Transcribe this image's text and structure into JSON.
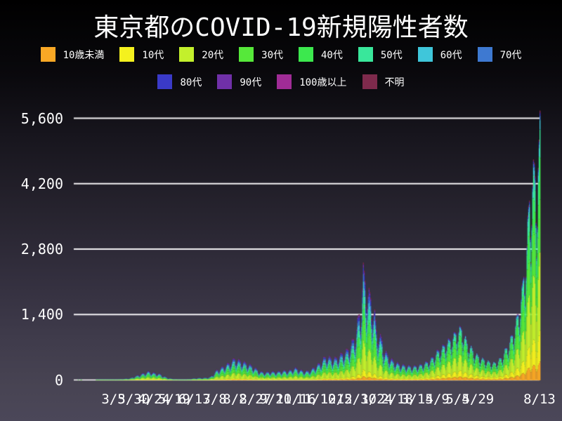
{
  "page": {
    "title": "東京都のCOVID-19新規陽性者数"
  },
  "legend": {
    "rows": [
      [
        {
          "label": "10歳未満",
          "color": "#f9a825"
        },
        {
          "label": "10代",
          "color": "#f4f11e"
        },
        {
          "label": "20代",
          "color": "#c3f02c"
        },
        {
          "label": "30代",
          "color": "#56e83a"
        },
        {
          "label": "40代",
          "color": "#3ce84e"
        },
        {
          "label": "50代",
          "color": "#39e79b"
        },
        {
          "label": "60代",
          "color": "#3fc6da"
        },
        {
          "label": "70代",
          "color": "#3e79d1"
        }
      ],
      [
        {
          "label": "80代",
          "color": "#3a3ac8"
        },
        {
          "label": "90代",
          "color": "#7030a8"
        },
        {
          "label": "100歳以上",
          "color": "#a02c96"
        },
        {
          "label": "不明",
          "color": "#7e2a4c"
        }
      ]
    ]
  },
  "axes": {
    "y": {
      "ticks": [
        {
          "label": "0",
          "value": 0
        },
        {
          "label": "1,400",
          "value": 1400
        },
        {
          "label": "2,800",
          "value": 2800
        },
        {
          "label": "4,200",
          "value": 4200
        },
        {
          "label": "5,600",
          "value": 5600
        }
      ]
    },
    "x": {
      "total_days": 575,
      "ticks": [
        {
          "label": "3/5",
          "day": 49
        },
        {
          "label": "3/30",
          "day": 74
        },
        {
          "label": "4/24",
          "day": 99
        },
        {
          "label": "5/19",
          "day": 124
        },
        {
          "label": "6/13",
          "day": 149
        },
        {
          "label": "7/8",
          "day": 174
        },
        {
          "label": "8/2",
          "day": 199
        },
        {
          "label": "8/27",
          "day": 224
        },
        {
          "label": "9/21",
          "day": 249
        },
        {
          "label": "10/16",
          "day": 274
        },
        {
          "label": "11/10",
          "day": 299
        },
        {
          "label": "12/5",
          "day": 324
        },
        {
          "label": "12/30",
          "day": 349
        },
        {
          "label": "1/24",
          "day": 374
        },
        {
          "label": "2/18",
          "day": 399
        },
        {
          "label": "3/15",
          "day": 424
        },
        {
          "label": "4/9",
          "day": 449
        },
        {
          "label": "5/4",
          "day": 474
        },
        {
          "label": "5/29",
          "day": 499
        },
        {
          "label": "8/13",
          "day": 575
        }
      ]
    }
  },
  "chart_data": {
    "type": "area",
    "stacked": true,
    "title": "東京都のCOVID-19新規陽性者数",
    "xlabel": "",
    "ylabel": "",
    "ylim": [
      0,
      5800
    ],
    "grid": true,
    "legend_position": "top",
    "categories_note": "daily values, day 0 at left edge of plot, day 575 = 8/13 at right edge",
    "series_stack_order_bottom_to_top": [
      "10歳未満",
      "10代",
      "20代",
      "30代",
      "40代",
      "50代",
      "60代",
      "70代",
      "80代",
      "90代",
      "100歳以上",
      "不明"
    ],
    "envelope_day_total": [
      [
        0,
        0
      ],
      [
        4,
        0
      ],
      [
        5,
        1.6
      ],
      [
        6,
        0
      ],
      [
        9,
        1.6
      ],
      [
        10,
        0
      ],
      [
        24,
        0
      ],
      [
        27,
        1.2
      ],
      [
        32,
        2
      ],
      [
        36,
        3.5
      ],
      [
        40,
        7
      ],
      [
        45,
        12
      ],
      [
        49,
        17
      ],
      [
        55,
        24
      ],
      [
        60,
        32
      ],
      [
        65,
        40
      ],
      [
        69,
        48
      ],
      [
        74,
        85
      ],
      [
        80,
        125
      ],
      [
        85,
        160
      ],
      [
        92,
        205
      ],
      [
        98,
        175
      ],
      [
        103,
        158
      ],
      [
        106,
        145
      ],
      [
        110,
        100
      ],
      [
        115,
        60
      ],
      [
        120,
        38
      ],
      [
        128,
        24
      ],
      [
        137,
        19
      ],
      [
        144,
        34
      ],
      [
        151,
        52
      ],
      [
        158,
        56
      ],
      [
        164,
        62
      ],
      [
        168,
        78
      ],
      [
        172,
        145
      ],
      [
        176,
        235
      ],
      [
        182,
        295
      ],
      [
        189,
        375
      ],
      [
        194,
        430
      ],
      [
        198,
        505
      ],
      [
        203,
        460
      ],
      [
        208,
        430
      ],
      [
        212,
        405
      ],
      [
        220,
        330
      ],
      [
        226,
        250
      ],
      [
        229,
        205
      ],
      [
        236,
        185
      ],
      [
        243,
        205
      ],
      [
        248,
        195
      ],
      [
        255,
        210
      ],
      [
        259,
        225
      ],
      [
        264,
        215
      ],
      [
        269,
        250
      ],
      [
        273,
        285
      ],
      [
        278,
        245
      ],
      [
        283,
        215
      ],
      [
        288,
        215
      ],
      [
        293,
        255
      ],
      [
        298,
        330
      ],
      [
        304,
        410
      ],
      [
        308,
        505
      ],
      [
        311,
        560
      ],
      [
        315,
        530
      ],
      [
        319,
        505
      ],
      [
        323,
        515
      ],
      [
        327,
        560
      ],
      [
        331,
        625
      ],
      [
        335,
        660
      ],
      [
        340,
        760
      ],
      [
        345,
        960
      ],
      [
        348,
        1080
      ],
      [
        350,
        1360
      ],
      [
        353,
        1620
      ],
      [
        355,
        1850
      ],
      [
        357,
        2520
      ],
      [
        359,
        2320
      ],
      [
        361,
        2120
      ],
      [
        364,
        1980
      ],
      [
        366,
        1920
      ],
      [
        369,
        1640
      ],
      [
        371,
        1520
      ],
      [
        373,
        1180
      ],
      [
        375,
        1080
      ],
      [
        378,
        1000
      ],
      [
        380,
        940
      ],
      [
        382,
        700
      ],
      [
        385,
        640
      ],
      [
        388,
        570
      ],
      [
        392,
        480
      ],
      [
        396,
        430
      ],
      [
        400,
        390
      ],
      [
        403,
        370
      ],
      [
        407,
        350
      ],
      [
        410,
        345
      ],
      [
        414,
        330
      ],
      [
        417,
        325
      ],
      [
        421,
        330
      ],
      [
        424,
        340
      ],
      [
        428,
        360
      ],
      [
        431,
        390
      ],
      [
        435,
        420
      ],
      [
        438,
        450
      ],
      [
        442,
        520
      ],
      [
        445,
        590
      ],
      [
        449,
        680
      ],
      [
        452,
        720
      ],
      [
        456,
        790
      ],
      [
        459,
        870
      ],
      [
        463,
        920
      ],
      [
        466,
        980
      ],
      [
        469,
        1040
      ],
      [
        471,
        1100
      ],
      [
        474,
        1150
      ],
      [
        478,
        1200
      ],
      [
        481,
        1060
      ],
      [
        485,
        870
      ],
      [
        489,
        780
      ],
      [
        492,
        700
      ],
      [
        496,
        600
      ],
      [
        499,
        560
      ],
      [
        503,
        500
      ],
      [
        506,
        480
      ],
      [
        510,
        440
      ],
      [
        513,
        420
      ],
      [
        517,
        400
      ],
      [
        520,
        405
      ],
      [
        523,
        440
      ],
      [
        527,
        520
      ],
      [
        530,
        610
      ],
      [
        532,
        690
      ],
      [
        535,
        790
      ],
      [
        539,
        960
      ],
      [
        542,
        1100
      ],
      [
        546,
        1380
      ],
      [
        549,
        1620
      ],
      [
        553,
        2050
      ],
      [
        556,
        2600
      ],
      [
        559,
        3200
      ],
      [
        562,
        4180
      ],
      [
        564,
        4350
      ],
      [
        566,
        4650
      ],
      [
        568,
        4800
      ],
      [
        570,
        4700
      ],
      [
        572,
        4450
      ],
      [
        573,
        5050
      ],
      [
        574,
        5150
      ],
      [
        575,
        5950
      ]
    ],
    "weekday_factors_mon_to_sun": [
      0.58,
      0.74,
      0.9,
      1.0,
      0.97,
      0.92,
      0.72
    ],
    "day0_weekday_index": 3,
    "age_share_early": [
      0.035,
      0.06,
      0.245,
      0.17,
      0.14,
      0.115,
      0.075,
      0.065,
      0.05,
      0.028,
      0.002,
      0.015
    ],
    "age_share_late": [
      0.07,
      0.115,
      0.29,
      0.195,
      0.155,
      0.105,
      0.035,
      0.016,
      0.008,
      0.004,
      0.0005,
      0.0065
    ],
    "share_blend_day_range": [
      380,
      480
    ],
    "notable_peaks": [
      {
        "near_tick": "4/24",
        "approx_total": 200
      },
      {
        "near_tick": "8/2",
        "approx_total": 470
      },
      {
        "near_tick": "12/30",
        "approx_total": 2520
      },
      {
        "near_tick": "5/4",
        "approx_total": 1120
      },
      {
        "near_tick": "8/13",
        "approx_total": 5770
      }
    ]
  },
  "style_colors": {
    "grid_line": "#f5f4f6",
    "axis_line": "#ffffff",
    "text": "#ffffff"
  }
}
